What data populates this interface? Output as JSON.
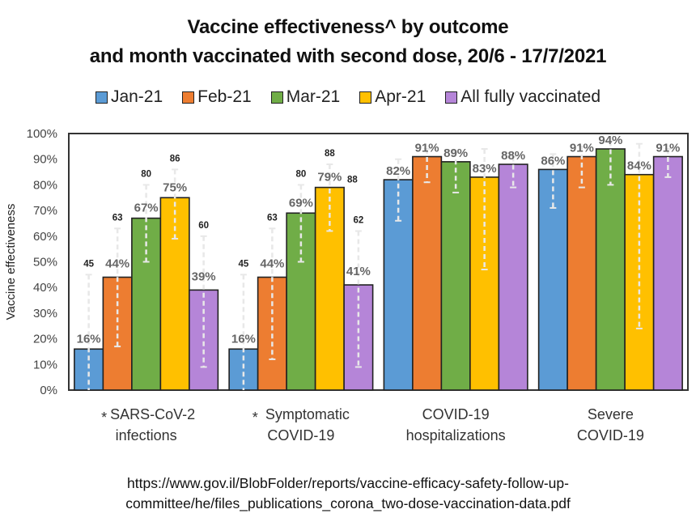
{
  "chart_data": {
    "type": "bar",
    "title": "Vaccine effectiveness^ by outcome",
    "subtitle": "and month vaccinated with second dose, 20/6 - 17/7/2021",
    "xlabel": "",
    "ylabel": "Vaccine effectiveness",
    "ylim": [
      0,
      100
    ],
    "yticks": [
      "0%",
      "10%",
      "20%",
      "30%",
      "40%",
      "50%",
      "60%",
      "70%",
      "80%",
      "90%",
      "100%"
    ],
    "grid": false,
    "legend_position": "top",
    "categories": [
      {
        "marker": "*",
        "lines": [
          "SARS-CoV-2",
          "infections"
        ]
      },
      {
        "marker": "*",
        "lines": [
          "Symptomatic",
          "COVID-19"
        ]
      },
      {
        "marker": "",
        "lines": [
          "COVID-19",
          "hospitalizations"
        ]
      },
      {
        "marker": "",
        "lines": [
          "Severe",
          "COVID-19"
        ]
      }
    ],
    "series": [
      {
        "name": "Jan-21",
        "color": "#5b9bd5",
        "values": [
          16,
          16,
          82,
          86
        ],
        "labels": [
          "16%",
          "16%",
          "82%",
          "86%"
        ],
        "ci_low": [
          0,
          0,
          66,
          71
        ],
        "ci_high": [
          45,
          45,
          90,
          92
        ],
        "upper_labels": [
          "45",
          "45",
          "",
          ""
        ]
      },
      {
        "name": "Feb-21",
        "color": "#ed7d31",
        "values": [
          44,
          44,
          91,
          91
        ],
        "labels": [
          "44%",
          "44%",
          "91%",
          "91%"
        ],
        "ci_low": [
          17,
          12,
          81,
          79
        ],
        "ci_high": [
          63,
          63,
          94,
          95
        ],
        "upper_labels": [
          "63",
          "63",
          "",
          ""
        ]
      },
      {
        "name": "Mar-21",
        "color": "#70ad47",
        "values": [
          67,
          69,
          89,
          94
        ],
        "labels": [
          "67%",
          "69%",
          "89%",
          "94%"
        ],
        "ci_low": [
          50,
          50,
          77,
          80
        ],
        "ci_high": [
          80,
          80,
          93,
          97
        ],
        "upper_labels": [
          "80",
          "80",
          "",
          ""
        ]
      },
      {
        "name": "Apr-21",
        "color": "#ffc000",
        "values": [
          75,
          79,
          83,
          84
        ],
        "labels": [
          "75%",
          "79%",
          "83%",
          "84%"
        ],
        "ci_low": [
          59,
          62,
          47,
          24
        ],
        "ci_high": [
          86,
          88,
          94,
          96
        ],
        "upper_labels": [
          "86",
          "88",
          "",
          ""
        ]
      },
      {
        "name": "All fully vaccinated",
        "color": "#b585d8",
        "values": [
          39,
          41,
          88,
          91
        ],
        "labels": [
          "39%",
          "41%",
          "88%",
          "91%"
        ],
        "ci_low": [
          9,
          9,
          79,
          83
        ],
        "ci_high": [
          60,
          62,
          91,
          94
        ],
        "upper_labels": [
          "60",
          "62",
          "",
          ""
        ]
      }
    ],
    "annotations": [
      "88"
    ]
  },
  "source": {
    "line1": "https://www.gov.il/BlobFolder/reports/vaccine-efficacy-safety-follow-up-",
    "line2": "committee/he/files_publications_corona_two-dose-vaccination-data.pdf"
  }
}
